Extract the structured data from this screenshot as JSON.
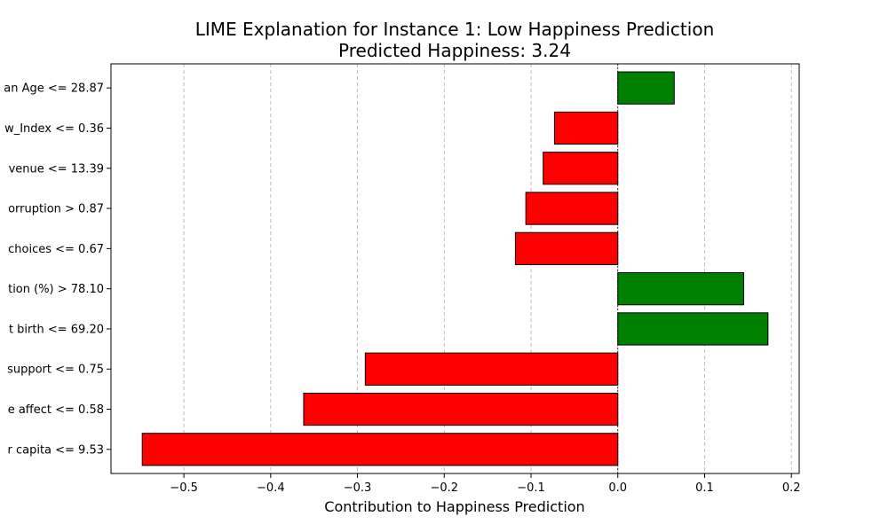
{
  "chart_data": {
    "type": "bar",
    "orientation": "horizontal",
    "title": "LIME Explanation for Instance 1: Low Happiness Prediction",
    "subtitle": "Predicted Happiness: 3.24",
    "xlabel": "Contribution to Happiness Prediction",
    "ylabel": "",
    "xlim": [
      -0.584,
      0.209
    ],
    "xticks": [
      -0.5,
      -0.4,
      -0.3,
      -0.2,
      -0.1,
      0.0,
      0.1,
      0.2
    ],
    "xtick_labels": [
      "−0.5",
      "−0.4",
      "−0.3",
      "−0.2",
      "−0.1",
      "0.0",
      "0.1",
      "0.2"
    ],
    "grid": "x-dashed",
    "categories": [
      "an Age <= 28.87",
      "w_Index <= 0.36",
      "venue <= 13.39",
      "orruption > 0.87",
      "choices <= 0.67",
      "tion (%) > 78.10",
      "t birth <= 69.20",
      "support <= 0.75",
      "e affect <= 0.58",
      "r capita <= 9.53"
    ],
    "values": [
      0.065,
      -0.073,
      -0.086,
      -0.106,
      -0.118,
      0.145,
      0.173,
      -0.291,
      -0.362,
      -0.548
    ],
    "colors": {
      "positive": "#008000",
      "negative": "#ff0000",
      "edge": "#000000",
      "grid": "#b0b0b0"
    }
  }
}
